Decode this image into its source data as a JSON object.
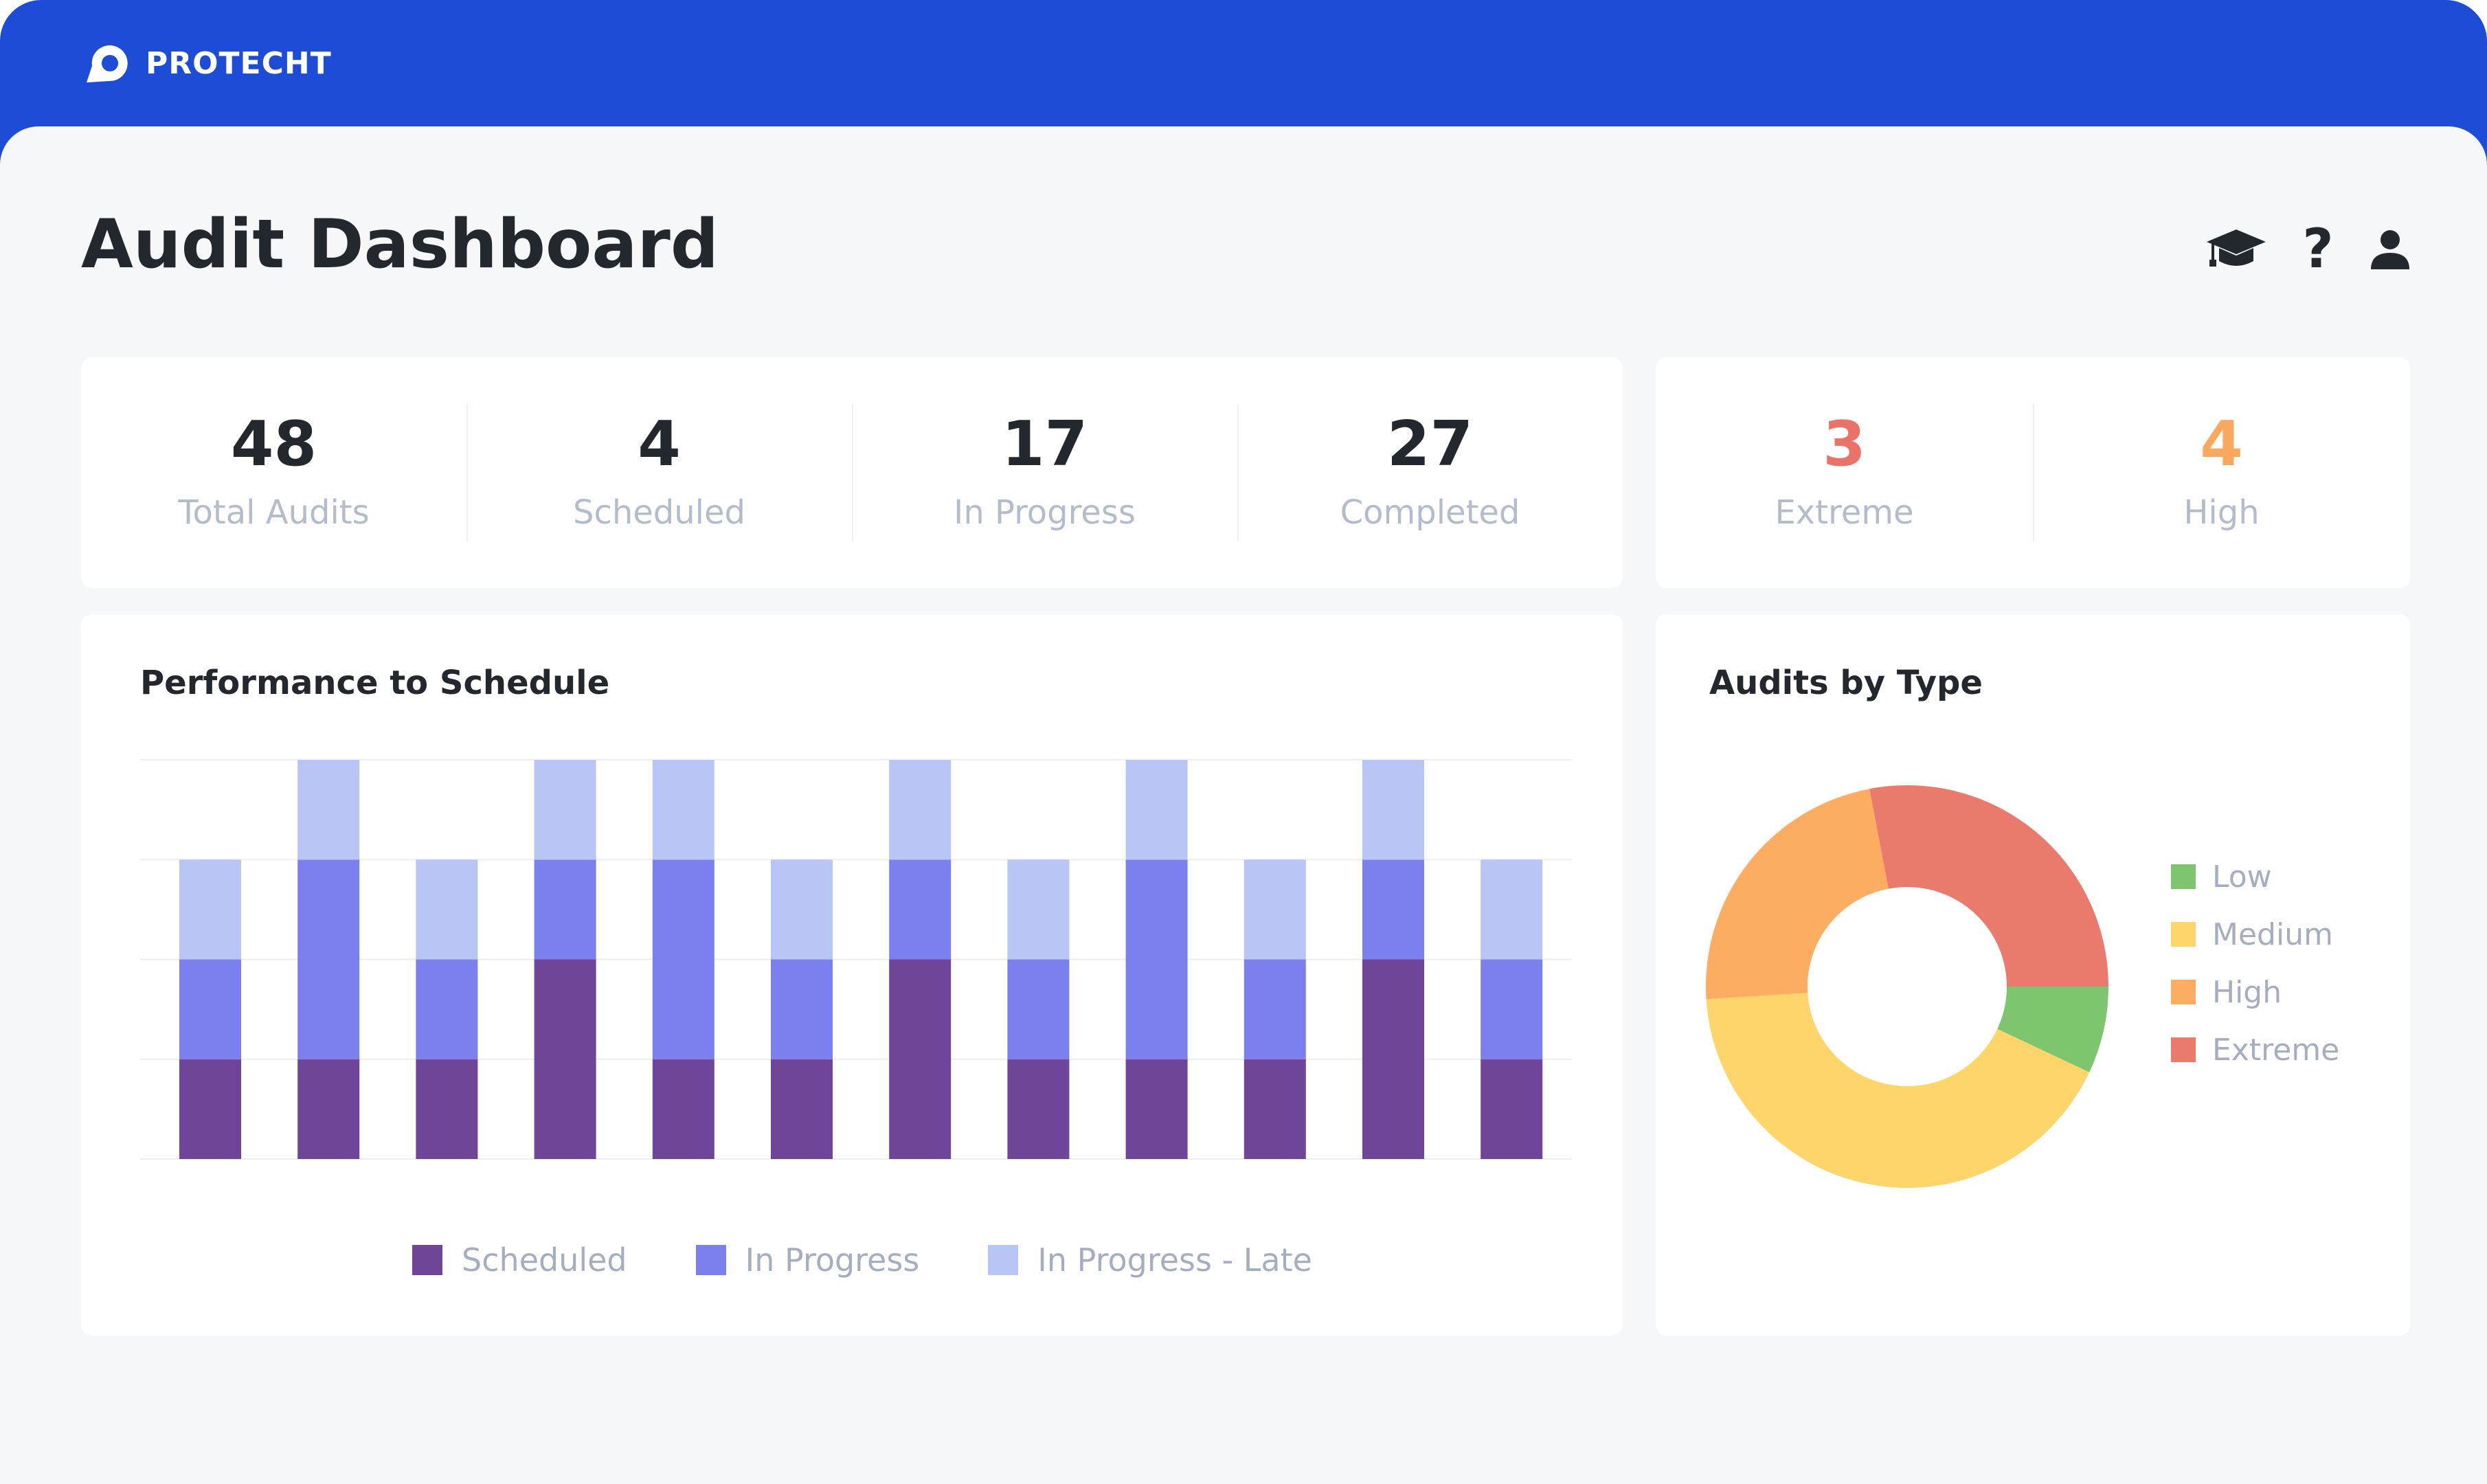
{
  "app": {
    "brand": "PROTECHT"
  },
  "page": {
    "title": "Audit Dashboard"
  },
  "header_icons": [
    "graduation-cap-icon",
    "help-icon",
    "user-icon"
  ],
  "help_symbol": "?",
  "summary": [
    {
      "value": "48",
      "label": "Total Audits",
      "color": "#23272e"
    },
    {
      "value": "4",
      "label": "Scheduled",
      "color": "#23272e"
    },
    {
      "value": "17",
      "label": "In Progress",
      "color": "#23272e"
    },
    {
      "value": "27",
      "label": "Completed",
      "color": "#23272e"
    }
  ],
  "risk_summary": [
    {
      "value": "3",
      "label": "Extreme",
      "color": "#ea7266"
    },
    {
      "value": "4",
      "label": "High",
      "color": "#f9a85d"
    }
  ],
  "performance_card": {
    "title": "Performance to Schedule"
  },
  "type_card": {
    "title": "Audits by Type"
  },
  "chart_data": [
    {
      "type": "bar",
      "stacked": true,
      "title": "Performance to Schedule",
      "categories": [
        "",
        "",
        "",
        "",
        "",
        "",
        "",
        "",
        "",
        "",
        "",
        ""
      ],
      "ylim": [
        0,
        4
      ],
      "grid": true,
      "legend_position": "bottom",
      "series": [
        {
          "name": "Scheduled",
          "color": "#6e4598",
          "values": [
            1,
            1,
            1,
            2,
            1,
            1,
            2,
            1,
            1,
            1,
            2,
            1
          ]
        },
        {
          "name": "In Progress",
          "color": "#7c80ee",
          "values": [
            1,
            2,
            1,
            1,
            2,
            1,
            1,
            1,
            2,
            1,
            1,
            1
          ]
        },
        {
          "name": "In Progress - Late",
          "color": "#b8c5f5",
          "values": [
            1,
            1,
            1,
            1,
            1,
            1,
            1,
            1,
            1,
            1,
            1,
            1
          ]
        }
      ]
    },
    {
      "type": "pie",
      "donut": true,
      "title": "Audits by Type",
      "legend_position": "right",
      "series": [
        {
          "name": "Low",
          "color": "#7dc66f",
          "value": 7
        },
        {
          "name": "Medium",
          "color": "#fed56b",
          "value": 42
        },
        {
          "name": "High",
          "color": "#fdad62",
          "value": 23
        },
        {
          "name": "Extreme",
          "color": "#ea7a6c",
          "value": 28
        }
      ]
    }
  ]
}
